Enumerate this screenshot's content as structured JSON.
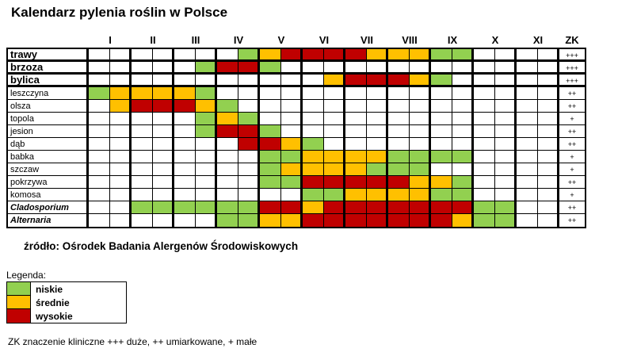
{
  "title": "Kalendarz pylenia roślin w Polsce",
  "source": "źródło: Ośrodek Badania Alergenów Środowiskowych",
  "footnote": "ZK znaczenie kliniczne +++ duże, ++ umiarkowane, + małe",
  "legend": {
    "heading": "Legenda:",
    "items": [
      {
        "label": "niskie",
        "level": "L",
        "color": "#92D050"
      },
      {
        "label": "średnie",
        "level": "M",
        "color": "#FFC000"
      },
      {
        "label": "wysokie",
        "level": "H",
        "color": "#C00000"
      }
    ]
  },
  "chart_data": {
    "type": "heatmap",
    "title": "Kalendarz pylenia roślin w Polsce",
    "x_unit": "half_month",
    "months": [
      "I",
      "II",
      "III",
      "IV",
      "V",
      "VI",
      "VII",
      "VIII",
      "IX",
      "X",
      "XI"
    ],
    "zk_column_label": "ZK",
    "columns": [
      "I/1",
      "I/2",
      "II/1",
      "II/2",
      "III/1",
      "III/2",
      "IV/1",
      "IV/2",
      "V/1",
      "V/2",
      "VI/1",
      "VI/2",
      "VII/1",
      "VII/2",
      "VIII/1",
      "VIII/2",
      "IX/1",
      "IX/2",
      "X/1",
      "X/2",
      "XI/1",
      "XI/2"
    ],
    "cell_codes": {
      ".": "brak",
      "L": "niskie",
      "M": "średnie",
      "H": "wysokie"
    },
    "colors": {
      ".": "#FFFFFF",
      "L": "#92D050",
      "M": "#FFC000",
      "H": "#C00000"
    },
    "rows": [
      {
        "name": "trawy",
        "style": "bold",
        "zk": "+++",
        "cells": ".......LMHHHHMMMLL...."
      },
      {
        "name": "brzoza",
        "style": "bold",
        "zk": "+++",
        "cells": ".....LHHL............."
      },
      {
        "name": "bylica",
        "style": "bold",
        "zk": "+++",
        "cells": "...........MHHHML....."
      },
      {
        "name": "leszczyna",
        "style": "normal",
        "zk": "++",
        "cells": "LMMMML................"
      },
      {
        "name": "olsza",
        "style": "normal",
        "zk": "++",
        "cells": ".MHHHML..............."
      },
      {
        "name": "topola",
        "style": "normal",
        "zk": "+",
        "cells": ".....LML.............."
      },
      {
        "name": "jesion",
        "style": "normal",
        "zk": "++",
        "cells": ".....LHHL............."
      },
      {
        "name": "dąb",
        "style": "normal",
        "zk": "++",
        "cells": ".......HHML..........."
      },
      {
        "name": "babka",
        "style": "normal",
        "zk": "+",
        "cells": "........LLMMMMLLLL...."
      },
      {
        "name": "szczaw",
        "style": "normal",
        "zk": "+",
        "cells": "........LMMMMLLL......"
      },
      {
        "name": "pokrzywa",
        "style": "normal",
        "zk": "++",
        "cells": "........LLHHHHHMML...."
      },
      {
        "name": "komosa",
        "style": "normal",
        "zk": "+",
        "cells": "..........LLMMMMLL...."
      },
      {
        "name": "Cladosporium",
        "style": "italic",
        "zk": "++",
        "cells": "..LLLLLLHHMHHHHHHHLL.."
      },
      {
        "name": "Alternaria",
        "style": "italic",
        "zk": "++",
        "cells": "......LLMMHHHHHHHMLL.."
      }
    ]
  }
}
